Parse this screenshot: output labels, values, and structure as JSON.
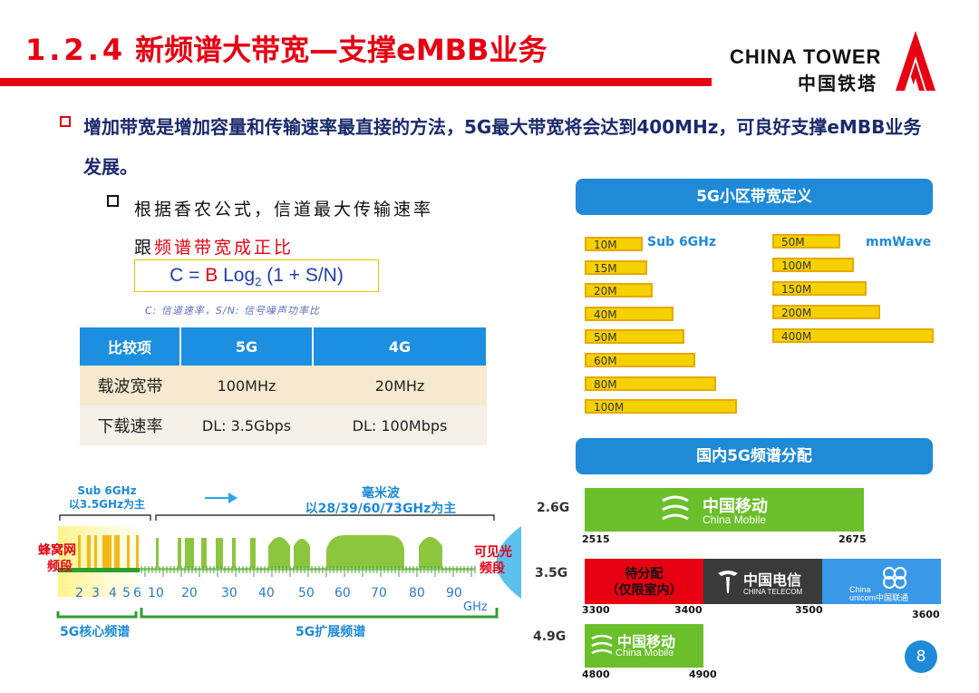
{
  "header": {
    "section_number": "1.2.4",
    "title": "新频谱大带宽—支撑eMBB业务",
    "logo_en": "CHINA TOWER",
    "logo_cn": "中国铁塔",
    "accent_color": "#e60012"
  },
  "main_bullet": "增加带宽是增加容量和传输速率最直接的方法，5G最大带宽将会达到400MHz，可良好支撑eMBB业务发展。",
  "sub_bullet": {
    "line1": "根据香农公式，信道最大传输速率",
    "line2_prefix": "跟",
    "line2_highlight": "频谱带宽成正比"
  },
  "formula": {
    "pre": "C = ",
    "b": "B",
    "log": " Log",
    "sub": "2",
    "post": " (1 + S/N)"
  },
  "formula_caption": "C: 信道速率，S/N: 信号噪声功率比",
  "comparison_table": {
    "headers": [
      "比较项",
      "5G",
      "4G"
    ],
    "rows": [
      [
        "载波宽带",
        "100MHz",
        "20MHz"
      ],
      [
        "下载速率",
        "DL: 3.5Gbps",
        "DL: 100Mbps"
      ]
    ]
  },
  "spectrum": {
    "sub6_title": "Sub 6GHz",
    "sub6_sub": "以3.5GHz为主",
    "mmwave_title": "毫米波",
    "mmwave_sub": "以28/39/60/73GHz为主",
    "cellular_label_1": "蜂窝网",
    "cellular_label_2": "频段",
    "visible_label_1": "可见光",
    "visible_label_2": "频段",
    "axis_ticks": [
      "2",
      "3",
      "4",
      "5",
      "6",
      "10",
      "20",
      "30",
      "40",
      "50",
      "60",
      "70",
      "80",
      "90"
    ],
    "unit": "GHz",
    "core_label": "5G核心频谱",
    "ext_label": "5G扩展频谱"
  },
  "bandwidth_panel": {
    "title": "5G小区带宽定义",
    "sub6_label": "Sub 6GHz",
    "mmwave_label": "mmWave",
    "sub6_bars": [
      {
        "label": "10M",
        "mhz": 10
      },
      {
        "label": "15M",
        "mhz": 15
      },
      {
        "label": "20M",
        "mhz": 20
      },
      {
        "label": "40M",
        "mhz": 40
      },
      {
        "label": "50M",
        "mhz": 50
      },
      {
        "label": "60M",
        "mhz": 60
      },
      {
        "label": "80M",
        "mhz": 80
      },
      {
        "label": "100M",
        "mhz": 100
      }
    ],
    "mmwave_bars": [
      {
        "label": "50M",
        "mhz": 50
      },
      {
        "label": "100M",
        "mhz": 100
      },
      {
        "label": "150M",
        "mhz": 150
      },
      {
        "label": "200M",
        "mhz": 200
      },
      {
        "label": "400M",
        "mhz": 400
      }
    ]
  },
  "allocation_panel": {
    "title": "国内5G频谱分配",
    "rows": [
      {
        "band": "2.6G",
        "ticks": [
          "2515",
          "2675"
        ]
      },
      {
        "band": "3.5G",
        "ticks": [
          "3300",
          "3400",
          "3500",
          "3600"
        ]
      },
      {
        "band": "4.9G",
        "ticks": [
          "4800",
          "4900"
        ]
      }
    ],
    "china_mobile_cn": "中国移动",
    "china_mobile_en": "China Mobile",
    "pending_1": "待分配",
    "pending_2": "（仅限室内）",
    "china_telecom_cn": "中国电信",
    "china_telecom_en": "CHINA TELECOM",
    "china_unicom_en_1": "China",
    "china_unicom_en_2": "unicom中国联通",
    "colors": {
      "mobile": "#6abf2a",
      "pending": "#e60012",
      "telecom": "#3a3a3a",
      "unicom": "#3a98e8"
    }
  },
  "page_number": "8"
}
